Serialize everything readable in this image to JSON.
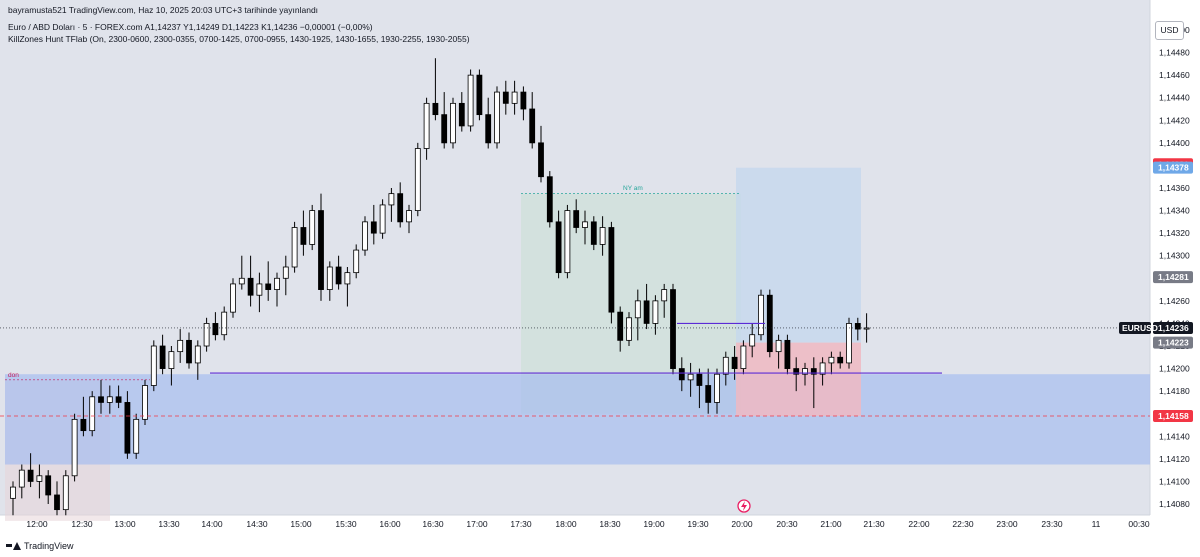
{
  "header": {
    "published": "bayramusta521 TradingView.com, Haz 10, 2025 20:03 UTC+3 tarihinde yayınlandı",
    "symbol_line": "Euro / ABD Doları · 5 · FOREX.com  A1,14237  Y1,14249  D1,14223  K1,14236  −0,00001 (−0,00%)",
    "indicator_line": "KillZones Hunt TFlab (On, 2300-0600, 2300-0355, 0700-1425, 0700-0955, 1430-1925, 1430-1655, 1930-2255, 1930-2055)"
  },
  "currency_button": "USD",
  "footer": {
    "brand": "TradingView"
  },
  "annotations": {
    "ny_am": "NY am",
    "don": "don"
  },
  "colors": {
    "background": "#e0e3eb",
    "candle_up": "#ffffff",
    "candle_down": "#000000",
    "wick": "#000000",
    "zone_blue": "#a7bdf0",
    "target_zone": "#c4d7ee",
    "stop_zone": "#efb9c2",
    "ny_zone": "#cfe0da",
    "level_line": "#5b2bd6",
    "red_label": "#f23645",
    "blue_label": "#6fa8e8",
    "gray_label": "#787b86",
    "black_label": "#131722"
  },
  "chart_data": {
    "type": "candlestick",
    "symbol": "EURUSD",
    "timeframe": "5",
    "ylim": [
      1.14071,
      1.14506
    ],
    "y_ticks": [
      "1,14500",
      "1,14480",
      "1,14460",
      "1,14440",
      "1,14420",
      "1,14400",
      "1,14380",
      "1,14360",
      "1,14340",
      "1,14320",
      "1,14300",
      "1,14280",
      "1,14260",
      "1,14240",
      "1,14220",
      "1,14200",
      "1,14180",
      "1,14160",
      "1,14140",
      "1,14120",
      "1,14100",
      "1,14080"
    ],
    "x_ticks": [
      "12:00",
      "12:30",
      "13:00",
      "13:30",
      "14:00",
      "14:30",
      "15:00",
      "15:30",
      "16:00",
      "16:30",
      "17:00",
      "17:30",
      "18:00",
      "18:30",
      "19:00",
      "19:30",
      "20:00",
      "20:30",
      "21:00",
      "21:30",
      "22:00",
      "22:30",
      "23:00",
      "23:30",
      "11",
      "00:30"
    ],
    "price_labels": [
      {
        "text": "1,14381",
        "value": 1.14381,
        "style": "red"
      },
      {
        "text": "1,14378",
        "value": 1.14378,
        "style": "blue"
      },
      {
        "text": "1,14281",
        "value": 1.14281,
        "style": "gray"
      },
      {
        "text": "1,14236",
        "value": 1.14236,
        "style": "black"
      },
      {
        "text": "1,14223",
        "value": 1.14223,
        "style": "gray"
      },
      {
        "text": "1,14158",
        "value": 1.14158,
        "style": "red"
      }
    ],
    "current_price_label": "EURUSD",
    "current_price": 1.14236,
    "candles": [
      [
        1.14085,
        1.141,
        1.1407,
        1.14095
      ],
      [
        1.14095,
        1.14115,
        1.14085,
        1.1411
      ],
      [
        1.1411,
        1.14125,
        1.14095,
        1.141
      ],
      [
        1.141,
        1.14115,
        1.14085,
        1.14105
      ],
      [
        1.14105,
        1.1411,
        1.1408,
        1.14088
      ],
      [
        1.14088,
        1.141,
        1.1407,
        1.14075
      ],
      [
        1.14075,
        1.1411,
        1.1407,
        1.14105
      ],
      [
        1.14105,
        1.1416,
        1.141,
        1.14155
      ],
      [
        1.14155,
        1.14175,
        1.1414,
        1.14145
      ],
      [
        1.14145,
        1.1418,
        1.1414,
        1.14175
      ],
      [
        1.14175,
        1.1419,
        1.1416,
        1.1417
      ],
      [
        1.1417,
        1.14185,
        1.1416,
        1.14175
      ],
      [
        1.14175,
        1.14185,
        1.14165,
        1.1417
      ],
      [
        1.1417,
        1.1418,
        1.1412,
        1.14125
      ],
      [
        1.14125,
        1.1416,
        1.1412,
        1.14155
      ],
      [
        1.14155,
        1.1419,
        1.1415,
        1.14185
      ],
      [
        1.14185,
        1.14225,
        1.1418,
        1.1422
      ],
      [
        1.1422,
        1.1423,
        1.14195,
        1.142
      ],
      [
        1.142,
        1.1422,
        1.14185,
        1.14215
      ],
      [
        1.14215,
        1.14235,
        1.14205,
        1.14225
      ],
      [
        1.14225,
        1.14232,
        1.142,
        1.14205
      ],
      [
        1.14205,
        1.14225,
        1.1419,
        1.1422
      ],
      [
        1.1422,
        1.14245,
        1.14215,
        1.1424
      ],
      [
        1.1424,
        1.1425,
        1.14225,
        1.1423
      ],
      [
        1.1423,
        1.14255,
        1.14225,
        1.1425
      ],
      [
        1.1425,
        1.1428,
        1.14245,
        1.14275
      ],
      [
        1.14275,
        1.143,
        1.1427,
        1.1428
      ],
      [
        1.1428,
        1.143,
        1.14255,
        1.14265
      ],
      [
        1.14265,
        1.14285,
        1.1425,
        1.14275
      ],
      [
        1.14275,
        1.14295,
        1.1426,
        1.1427
      ],
      [
        1.1427,
        1.14285,
        1.14255,
        1.1428
      ],
      [
        1.1428,
        1.143,
        1.14265,
        1.1429
      ],
      [
        1.1429,
        1.1433,
        1.14285,
        1.14325
      ],
      [
        1.14325,
        1.1434,
        1.143,
        1.1431
      ],
      [
        1.1431,
        1.14345,
        1.14305,
        1.1434
      ],
      [
        1.1434,
        1.14355,
        1.1426,
        1.1427
      ],
      [
        1.1427,
        1.14295,
        1.1426,
        1.1429
      ],
      [
        1.1429,
        1.143,
        1.1427,
        1.14275
      ],
      [
        1.14275,
        1.1429,
        1.14255,
        1.14285
      ],
      [
        1.14285,
        1.1431,
        1.1428,
        1.14305
      ],
      [
        1.14305,
        1.14335,
        1.143,
        1.1433
      ],
      [
        1.1433,
        1.14345,
        1.1431,
        1.1432
      ],
      [
        1.1432,
        1.1435,
        1.14315,
        1.14345
      ],
      [
        1.14345,
        1.1436,
        1.1433,
        1.14355
      ],
      [
        1.14355,
        1.14365,
        1.14325,
        1.1433
      ],
      [
        1.1433,
        1.14345,
        1.1432,
        1.1434
      ],
      [
        1.1434,
        1.144,
        1.14335,
        1.14395
      ],
      [
        1.14395,
        1.1444,
        1.14385,
        1.14435
      ],
      [
        1.14435,
        1.14475,
        1.1442,
        1.14425
      ],
      [
        1.14425,
        1.14445,
        1.14395,
        1.144
      ],
      [
        1.144,
        1.1444,
        1.14395,
        1.14435
      ],
      [
        1.14435,
        1.14445,
        1.1441,
        1.14415
      ],
      [
        1.14415,
        1.14465,
        1.1441,
        1.1446
      ],
      [
        1.1446,
        1.14465,
        1.1442,
        1.14425
      ],
      [
        1.14425,
        1.1444,
        1.14395,
        1.144
      ],
      [
        1.144,
        1.1445,
        1.14395,
        1.14445
      ],
      [
        1.14445,
        1.14455,
        1.14425,
        1.14435
      ],
      [
        1.14435,
        1.14455,
        1.14425,
        1.14445
      ],
      [
        1.14445,
        1.1445,
        1.1442,
        1.1443
      ],
      [
        1.1443,
        1.14445,
        1.14395,
        1.144
      ],
      [
        1.144,
        1.14415,
        1.14365,
        1.1437
      ],
      [
        1.1437,
        1.14375,
        1.14325,
        1.1433
      ],
      [
        1.1433,
        1.1434,
        1.1428,
        1.14285
      ],
      [
        1.14285,
        1.14345,
        1.1428,
        1.1434
      ],
      [
        1.1434,
        1.1435,
        1.1432,
        1.14325
      ],
      [
        1.14325,
        1.1434,
        1.1431,
        1.1433
      ],
      [
        1.1433,
        1.14335,
        1.14305,
        1.1431
      ],
      [
        1.1431,
        1.14335,
        1.143,
        1.14325
      ],
      [
        1.14325,
        1.1433,
        1.1424,
        1.1425
      ],
      [
        1.1425,
        1.14255,
        1.14215,
        1.14225
      ],
      [
        1.14225,
        1.1425,
        1.1422,
        1.14245
      ],
      [
        1.14245,
        1.1427,
        1.14225,
        1.1426
      ],
      [
        1.1426,
        1.14275,
        1.14235,
        1.1424
      ],
      [
        1.1424,
        1.14265,
        1.1423,
        1.1426
      ],
      [
        1.1426,
        1.14275,
        1.14245,
        1.1427
      ],
      [
        1.1427,
        1.14275,
        1.14195,
        1.142
      ],
      [
        1.142,
        1.1421,
        1.1418,
        1.1419
      ],
      [
        1.1419,
        1.14205,
        1.14175,
        1.14195
      ],
      [
        1.14195,
        1.142,
        1.14165,
        1.14185
      ],
      [
        1.14185,
        1.142,
        1.1416,
        1.1417
      ],
      [
        1.1417,
        1.142,
        1.1416,
        1.14195
      ],
      [
        1.14195,
        1.14215,
        1.14185,
        1.1421
      ],
      [
        1.1421,
        1.1422,
        1.1419,
        1.142
      ],
      [
        1.142,
        1.14225,
        1.14195,
        1.1422
      ],
      [
        1.1422,
        1.1424,
        1.1421,
        1.1423
      ],
      [
        1.1423,
        1.1427,
        1.14225,
        1.14265
      ],
      [
        1.14265,
        1.1427,
        1.1421,
        1.14215
      ],
      [
        1.14215,
        1.1423,
        1.142,
        1.14225
      ],
      [
        1.14225,
        1.1423,
        1.14195,
        1.142
      ],
      [
        1.142,
        1.1421,
        1.1418,
        1.14195
      ],
      [
        1.14195,
        1.14205,
        1.14185,
        1.142
      ],
      [
        1.142,
        1.1421,
        1.14165,
        1.14195
      ],
      [
        1.14195,
        1.1421,
        1.14185,
        1.14205
      ],
      [
        1.14205,
        1.14215,
        1.14195,
        1.1421
      ],
      [
        1.1421,
        1.14215,
        1.142,
        1.14205
      ],
      [
        1.14205,
        1.14245,
        1.142,
        1.1424
      ],
      [
        1.1424,
        1.14245,
        1.14225,
        1.14235
      ],
      [
        1.14235,
        1.14249,
        1.14223,
        1.14236
      ]
    ],
    "zones": [
      {
        "name": "demand",
        "from": 1.14115,
        "to": 1.14195
      },
      {
        "name": "ny_am",
        "from": 1.1416,
        "to": 1.14355
      },
      {
        "name": "target",
        "from": 1.14223,
        "to": 1.14378
      },
      {
        "name": "stop",
        "from": 1.14158,
        "to": 1.14223
      },
      {
        "name": "left_box",
        "from": 1.14065,
        "to": 1.1419
      }
    ],
    "levels": [
      {
        "name": "level_1142",
        "value": 1.14196
      },
      {
        "name": "level_entry",
        "value": 1.14236
      }
    ]
  }
}
